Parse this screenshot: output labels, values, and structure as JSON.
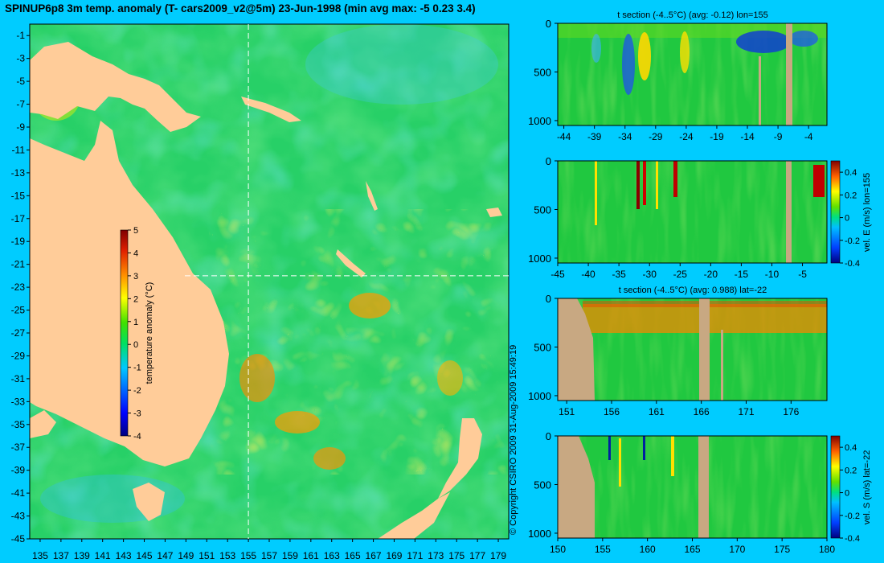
{
  "title": "SPINUP6p8 3m temp. anomaly (T- cars2009_v2@5m) 23-Jun-1998 (min avg max: -5 0.23 3.4)",
  "copyright": "© Copyright CSIRO 2009   31-Aug-2009 15:49:19",
  "colors": {
    "background": "#00ccff",
    "land": "#ffcc99",
    "section_land": "#c8a882",
    "guide_line": "#ffffff"
  },
  "chart_data": [
    {
      "type": "heatmap",
      "id": "map",
      "title": "SPINUP6p8 3m temp. anomaly (T- cars2009_v2@5m) 23-Jun-1998 (min avg max: -5 0.23 3.4)",
      "x_ticks": [
        "135",
        "137",
        "139",
        "141",
        "143",
        "145",
        "147",
        "149",
        "151",
        "153",
        "155",
        "157",
        "159",
        "161",
        "163",
        "165",
        "167",
        "169",
        "171",
        "173",
        "175",
        "177",
        "179"
      ],
      "y_ticks": [
        "-1",
        "-3",
        "-5",
        "-7",
        "-9",
        "-11",
        "-13",
        "-15",
        "-17",
        "-19",
        "-21",
        "-23",
        "-25",
        "-27",
        "-29",
        "-31",
        "-33",
        "-35",
        "-37",
        "-39",
        "-41",
        "-43",
        "-45"
      ],
      "xlim": [
        134,
        180
      ],
      "ylim": [
        -45,
        0
      ],
      "guide_lon": 155,
      "guide_lat": -22,
      "stats": {
        "min": -5,
        "avg": 0.23,
        "max": 3.4
      },
      "colorbar": {
        "label": "temperature anomaly (°C)",
        "ticks": [
          "5",
          "4",
          "3",
          "2",
          "1",
          "0",
          "-1",
          "-2",
          "-3",
          "-4"
        ],
        "range": [
          -4,
          5
        ]
      }
    },
    {
      "type": "heatmap",
      "id": "sec1",
      "title": "t section (-4..5°C) (avg: -0.12) lon=155",
      "x_ticks": [
        "-44",
        "-39",
        "-34",
        "-29",
        "-24",
        "-19",
        "-14",
        "-9",
        "-4"
      ],
      "y_ticks": [
        "0",
        "500",
        "1000"
      ],
      "xlim": [
        -45,
        -1
      ],
      "ylim": [
        0,
        1050
      ]
    },
    {
      "type": "heatmap",
      "id": "sec2",
      "title": "",
      "x_ticks": [
        "-45",
        "-40",
        "-35",
        "-30",
        "-25",
        "-20",
        "-15",
        "-10",
        "-5"
      ],
      "y_ticks": [
        "0",
        "500",
        "1000"
      ],
      "xlim": [
        -45,
        -1
      ],
      "ylim": [
        0,
        1050
      ],
      "colorbar": {
        "label": "vel. E (m/s) lon=155",
        "ticks": [
          "0.4",
          "0.2",
          "0",
          "-0.2",
          "-0.4"
        ],
        "range": [
          -0.4,
          0.5
        ]
      }
    },
    {
      "type": "heatmap",
      "id": "sec3",
      "title": "t section (-4..5°C) (avg: 0.988) lat=-22",
      "x_ticks": [
        "151",
        "156",
        "161",
        "166",
        "171",
        "176"
      ],
      "y_ticks": [
        "0",
        "500",
        "1000"
      ],
      "xlim": [
        150,
        180
      ],
      "ylim": [
        0,
        1050
      ]
    },
    {
      "type": "heatmap",
      "id": "sec4",
      "title": "",
      "x_ticks": [
        "150",
        "155",
        "160",
        "165",
        "170",
        "175",
        "180"
      ],
      "y_ticks": [
        "0",
        "500",
        "1000"
      ],
      "xlim": [
        150,
        180
      ],
      "ylim": [
        0,
        1050
      ],
      "colorbar": {
        "label": "vel. S (m/s) lat=-22",
        "ticks": [
          "0.4",
          "0.2",
          "0",
          "-0.2",
          "-0.4"
        ],
        "range": [
          -0.4,
          0.5
        ]
      }
    }
  ]
}
